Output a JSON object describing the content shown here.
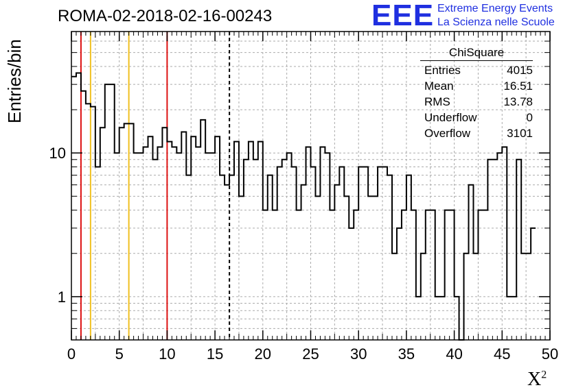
{
  "header": {
    "title": "ROMA-02-2018-02-16-00243",
    "logo_text": "EEE",
    "logo_line1": "Extreme Energy Events",
    "logo_line2": "La Scienza nelle Scuole"
  },
  "stats_box": {
    "name": "ChiSquare",
    "rows": [
      {
        "label": "Entries",
        "value": "4015"
      },
      {
        "label": "Mean",
        "value": "16.51"
      },
      {
        "label": "RMS",
        "value": "13.78"
      },
      {
        "label": "Underflow",
        "value": "0"
      },
      {
        "label": "Overflow",
        "value": "3101"
      }
    ]
  },
  "colors": {
    "histogram": "#000000",
    "red_lines": "#dd1111",
    "yellow_lines": "#f0c020",
    "mean_line": "#000000",
    "grid": "#aaaaaa",
    "logo": "#1f2fe0"
  },
  "chart_data": {
    "type": "histogram",
    "title": "ROMA-02-2018-02-16-00243",
    "xlabel": "X²",
    "ylabel": "Entries/bin",
    "xlim": [
      0,
      50
    ],
    "ylim": [
      0.5,
      70
    ],
    "yscale": "log",
    "grid": true,
    "bin_width": 0.5,
    "x_ticks": [
      0,
      5,
      10,
      15,
      20,
      25,
      30,
      35,
      40,
      45,
      50
    ],
    "x_tick_labels": [
      "0",
      "5",
      "10",
      "15",
      "20",
      "25",
      "30",
      "35",
      "40",
      "45",
      "50"
    ],
    "y_ticks": [
      1,
      10
    ],
    "y_tick_labels": [
      "1",
      "10"
    ],
    "counts": [
      34,
      36,
      27,
      22,
      21,
      8,
      15,
      30,
      30,
      10,
      15,
      16,
      16,
      10,
      10,
      11,
      13,
      9,
      11,
      15,
      12,
      11,
      10,
      14,
      7,
      13,
      11,
      17,
      10,
      10,
      13,
      7,
      6,
      7,
      12,
      5,
      9,
      12,
      9,
      12,
      4,
      7,
      4,
      8,
      9,
      10,
      8,
      4,
      6,
      11,
      8,
      5,
      11,
      10,
      4,
      6,
      8,
      5,
      3,
      4,
      8,
      8,
      5,
      5,
      8,
      8,
      7,
      2,
      3,
      4,
      7,
      4,
      1,
      2,
      4,
      4,
      1,
      1,
      4,
      4,
      1,
      0.4,
      2,
      6,
      2,
      4,
      4,
      9,
      9,
      10,
      11,
      1,
      1,
      9,
      2,
      2,
      3
    ],
    "vertical_lines": [
      {
        "x": 1.0,
        "color": "red"
      },
      {
        "x": 2.0,
        "color": "yellow"
      },
      {
        "x": 6.0,
        "color": "yellow"
      },
      {
        "x": 10.0,
        "color": "red"
      },
      {
        "x": 16.51,
        "color": "black",
        "style": "dashed"
      }
    ]
  }
}
